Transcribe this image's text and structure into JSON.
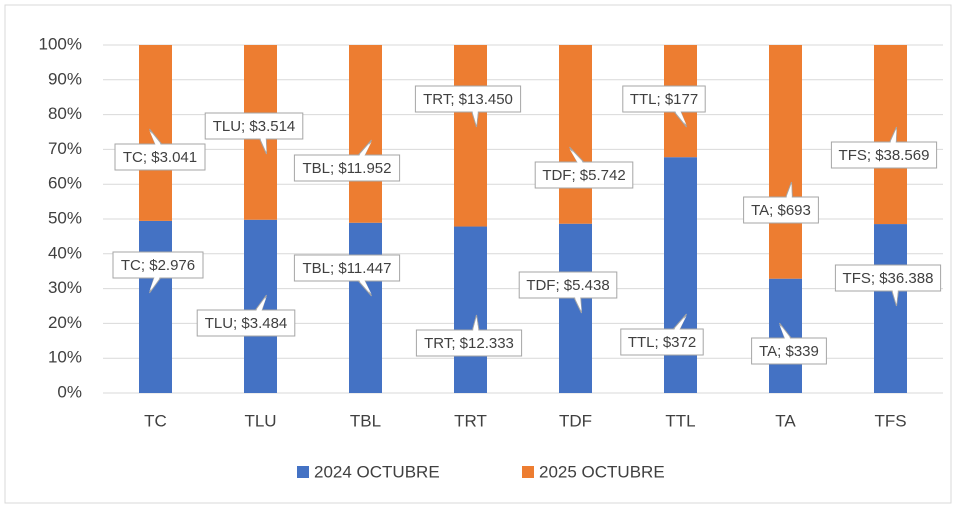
{
  "chart_data": {
    "type": "bar",
    "stacking": "percent",
    "categories": [
      "TC",
      "TLU",
      "TBL",
      "TRT",
      "TDF",
      "TTL",
      "TA",
      "TFS"
    ],
    "series": [
      {
        "name": "2024 OCTUBRE",
        "color": "#4472c4",
        "values": [
          2976,
          3484,
          11447,
          12333,
          5438,
          372,
          339,
          36388
        ],
        "value_labels": [
          "TC; $2.976",
          "TLU; $3.484",
          "TBL; $11.447",
          "TRT; $12.333",
          "TDF; $5.438",
          "TTL; $372",
          "TA; $339",
          "TFS; $36.388"
        ]
      },
      {
        "name": "2025 OCTUBRE",
        "color": "#ed7d31",
        "values": [
          3041,
          3514,
          11952,
          13450,
          5742,
          177,
          693,
          38569
        ],
        "value_labels": [
          "TC; $3.041",
          "TLU; $3.514",
          "TBL; $11.952",
          "TRT; $13.450",
          "TDF; $5.742",
          "TTL; $177",
          "TA; $693",
          "TFS; $38.569"
        ]
      }
    ],
    "ylim": [
      0,
      100
    ],
    "yticks": [
      {
        "value": 0,
        "label": "0%"
      },
      {
        "value": 10,
        "label": "10%"
      },
      {
        "value": 20,
        "label": "20%"
      },
      {
        "value": 30,
        "label": "30%"
      },
      {
        "value": 40,
        "label": "40%"
      },
      {
        "value": 50,
        "label": "50%"
      },
      {
        "value": 60,
        "label": "60%"
      },
      {
        "value": 70,
        "label": "70%"
      },
      {
        "value": 80,
        "label": "80%"
      },
      {
        "value": 90,
        "label": "90%"
      },
      {
        "value": 100,
        "label": "100%"
      }
    ],
    "grid": true,
    "legend": "bottom"
  }
}
